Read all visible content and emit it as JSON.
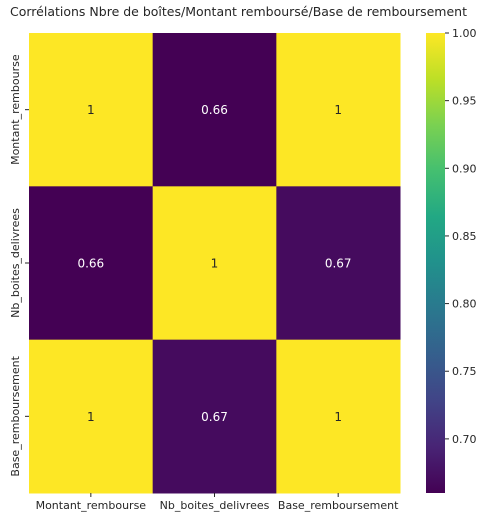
{
  "chart_data": {
    "type": "heatmap",
    "title": "Corrélations Nbre de boîtes/Montant remboursé/Base de remboursement",
    "row_labels": [
      "Montant_rembourse",
      "Nb_boites_delivrees",
      "Base_remboursement"
    ],
    "col_labels": [
      "Montant_rembourse",
      "Nb_boites_delivrees",
      "Base_remboursement"
    ],
    "values": [
      [
        1,
        0.66,
        1
      ],
      [
        0.66,
        1,
        0.67
      ],
      [
        1,
        0.67,
        1
      ]
    ],
    "cell_labels": [
      [
        "1",
        "0.66",
        "1"
      ],
      [
        "0.66",
        "1",
        "0.67"
      ],
      [
        "1",
        "0.67",
        "1"
      ]
    ],
    "colormap": "viridis",
    "vmin": 0.66,
    "vmax": 1.0,
    "colorbar_ticks": [
      {
        "value": 1.0,
        "label": "1.00"
      },
      {
        "value": 0.95,
        "label": "0.95"
      },
      {
        "value": 0.9,
        "label": "0.90"
      },
      {
        "value": 0.85,
        "label": "0.85"
      },
      {
        "value": 0.8,
        "label": "0.80"
      },
      {
        "value": 0.75,
        "label": "0.75"
      },
      {
        "value": 0.7,
        "label": "0.70"
      }
    ]
  }
}
